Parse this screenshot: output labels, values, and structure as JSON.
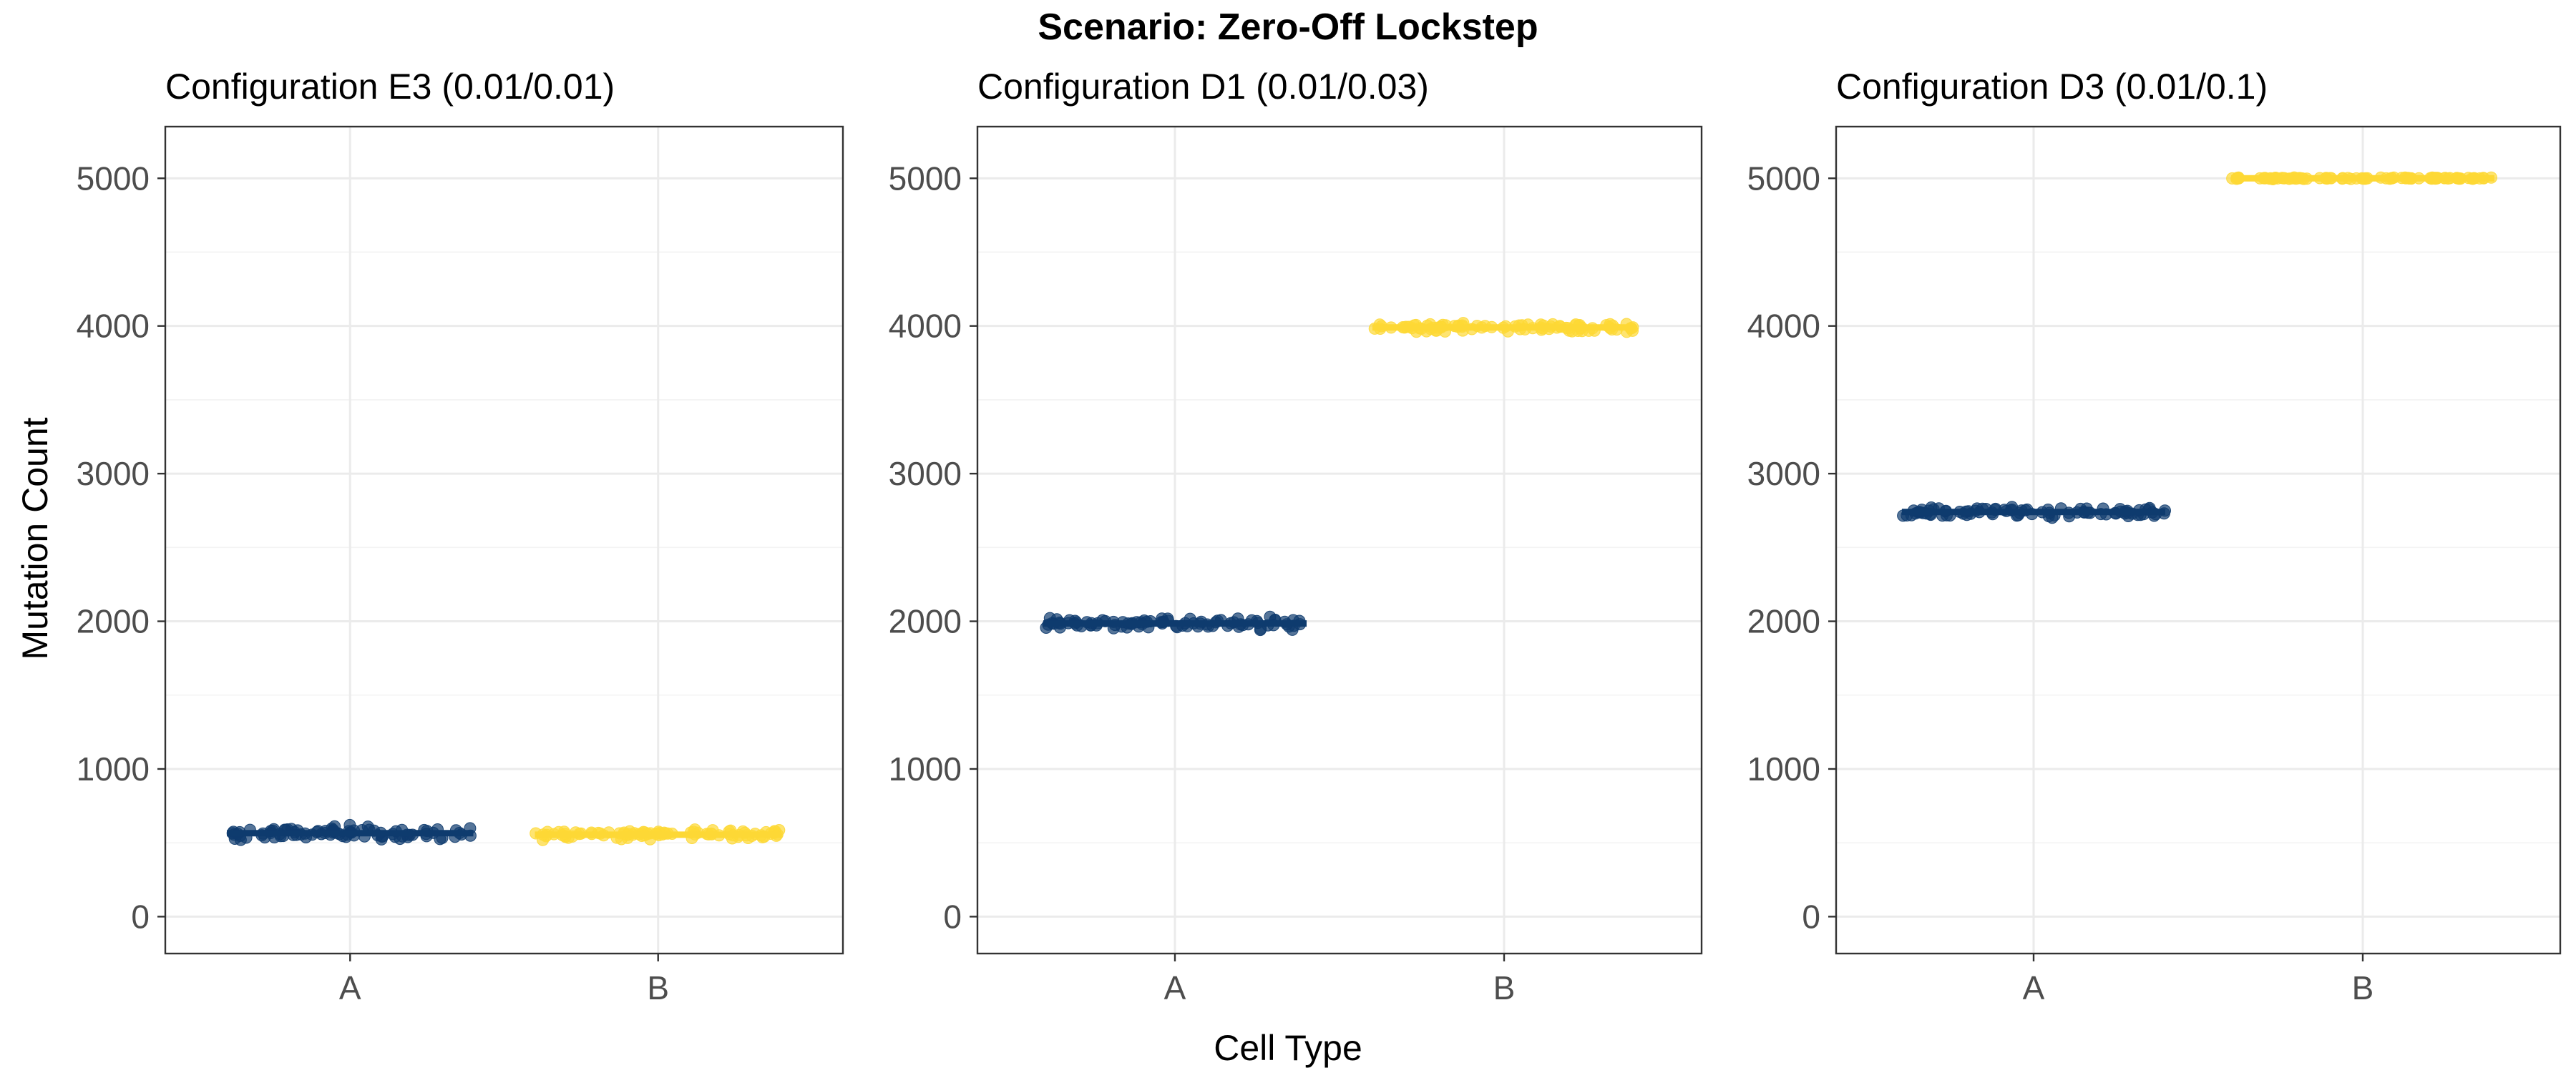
{
  "chart_data": {
    "type": "scatter",
    "title": "Scenario: Zero-Off Lockstep",
    "xlabel": "Cell Type",
    "ylabel": "Mutation Count",
    "categories": [
      "A",
      "B"
    ],
    "y_ticks": [
      0,
      1000,
      2000,
      3000,
      4000,
      5000
    ],
    "ylim": [
      -250,
      5350
    ],
    "grid": true,
    "colors": {
      "A": "#0e3b6e",
      "B": "#fdd835"
    },
    "panels": [
      {
        "title": "Configuration E3 (0.01/0.01)",
        "series": [
          {
            "category": "A",
            "mean": 565,
            "spread": 45
          },
          {
            "category": "B",
            "mean": 555,
            "spread": 35
          }
        ]
      },
      {
        "title": "Configuration D1 (0.01/0.03)",
        "series": [
          {
            "category": "A",
            "mean": 1985,
            "spread": 40
          },
          {
            "category": "B",
            "mean": 3990,
            "spread": 35
          }
        ]
      },
      {
        "title": "Configuration D3 (0.01/0.1)",
        "series": [
          {
            "category": "A",
            "mean": 2740,
            "spread": 35
          },
          {
            "category": "B",
            "mean": 5000,
            "spread": 5
          }
        ]
      }
    ]
  }
}
